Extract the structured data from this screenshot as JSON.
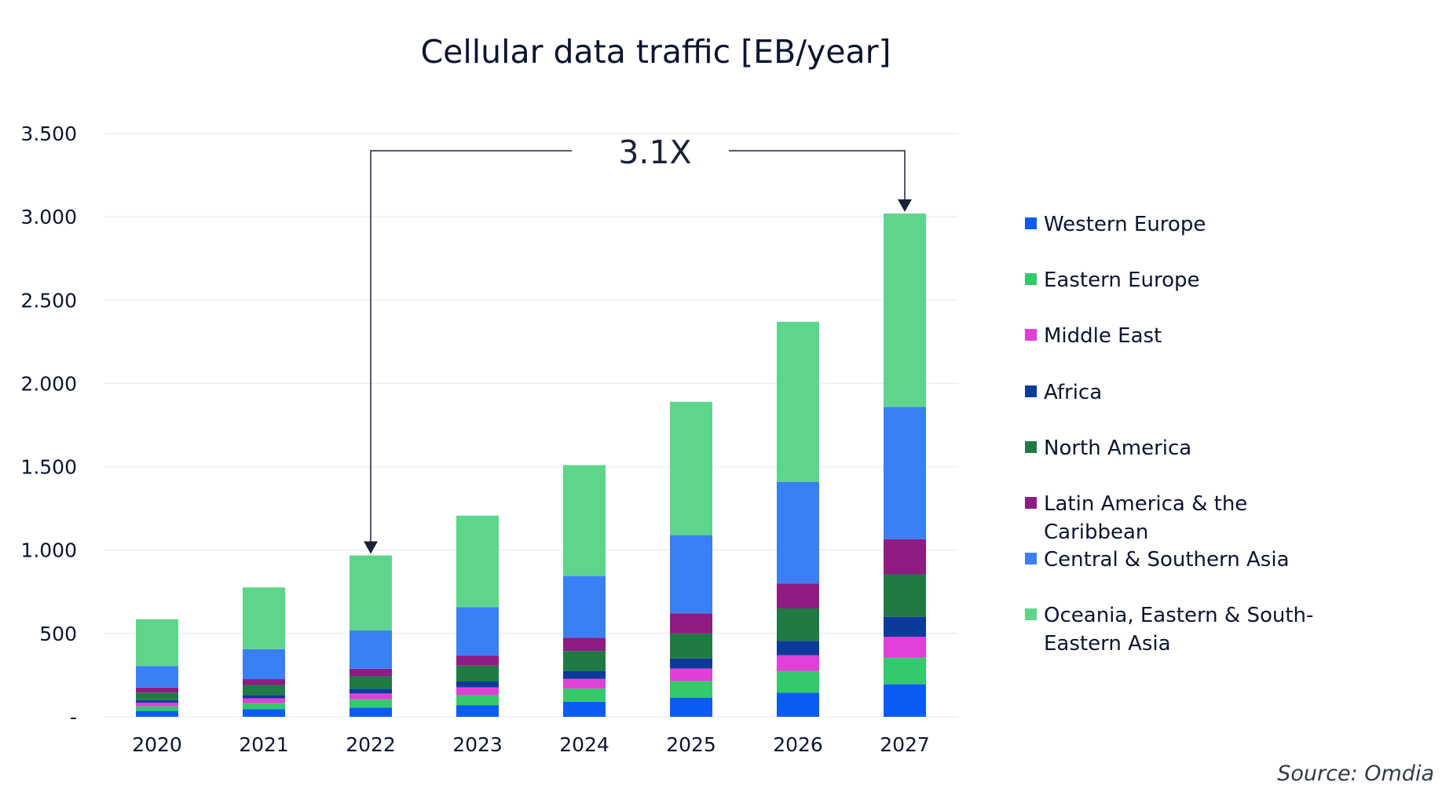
{
  "chart_data": {
    "type": "bar",
    "stacked": true,
    "title": "Cellular data traffic [EB/year]",
    "xlabel": "",
    "ylabel": "",
    "categories": [
      "2020",
      "2021",
      "2022",
      "2023",
      "2024",
      "2025",
      "2026",
      "2027"
    ],
    "ylim": [
      0,
      3500
    ],
    "yticks": [
      0,
      500,
      1000,
      1500,
      2000,
      2500,
      3000,
      3500
    ],
    "ytick_labels": [
      "-",
      "500",
      "1.000",
      "1.500",
      "2.000",
      "2.500",
      "3.000",
      "3.500"
    ],
    "grid": true,
    "legend_position": "right",
    "series": [
      {
        "name": "Western Europe",
        "color": "#0a5cf5",
        "values": [
          35,
          45,
          55,
          70,
          90,
          115,
          145,
          195
        ]
      },
      {
        "name": "Eastern Europe",
        "color": "#34c96b",
        "values": [
          28,
          38,
          50,
          62,
          80,
          100,
          130,
          160
        ]
      },
      {
        "name": "Middle East",
        "color": "#e03fd8",
        "values": [
          22,
          28,
          35,
          45,
          58,
          75,
          95,
          125
        ]
      },
      {
        "name": "Africa",
        "color": "#0a3a9a",
        "values": [
          15,
          20,
          28,
          35,
          47,
          60,
          85,
          120
        ]
      },
      {
        "name": "North America",
        "color": "#1f7a44",
        "values": [
          45,
          60,
          75,
          95,
          120,
          150,
          195,
          255
        ]
      },
      {
        "name": "Latin America & the Caribbean",
        "color": "#8e1c82",
        "values": [
          30,
          35,
          45,
          60,
          80,
          120,
          150,
          210
        ]
      },
      {
        "name": "Central & Southern Asia",
        "color": "#3a7ff5",
        "values": [
          130,
          180,
          230,
          290,
          370,
          470,
          610,
          795
        ]
      },
      {
        "name": "Oceania, Eastern & South-Eastern Asia",
        "color": "#5dd68c",
        "values": [
          280,
          370,
          450,
          550,
          665,
          800,
          960,
          1160
        ]
      }
    ],
    "annotation": {
      "text": "3.1X",
      "from_category": "2022",
      "to_category": "2027"
    }
  },
  "source_text": "Source: Omdia",
  "colors": {
    "axis_text": "#0b1430",
    "grid": "#e9ecef",
    "arrow": "#1b2236"
  }
}
